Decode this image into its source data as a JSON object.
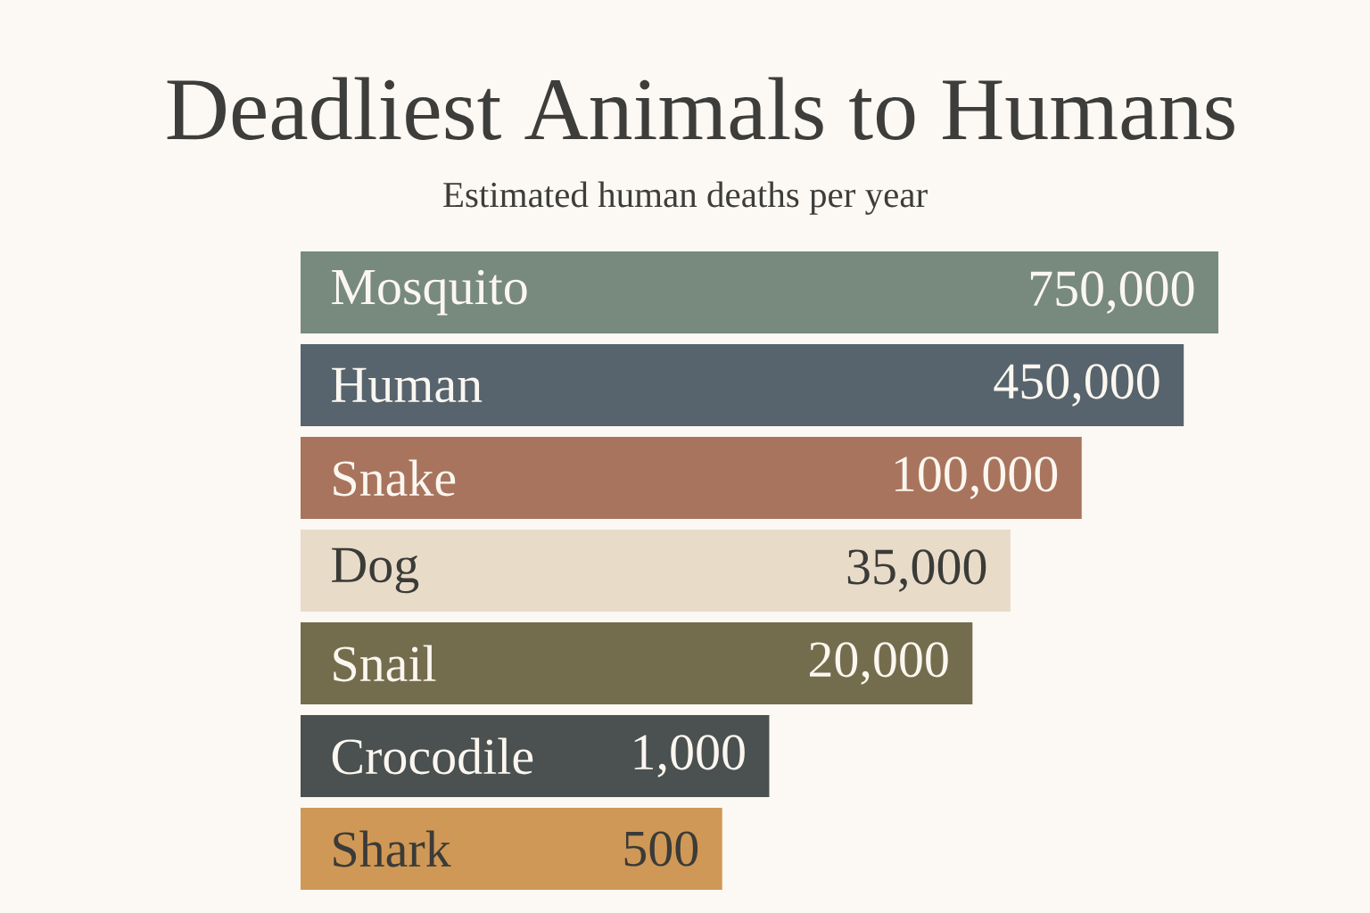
{
  "chart_data": {
    "type": "bar",
    "orientation": "horizontal",
    "title": "Deadliest Animals to Humans",
    "subtitle": "Estimated human deaths per year",
    "categories": [
      "Mosquito",
      "Human",
      "Snake",
      "Dog",
      "Snail",
      "Crocodile",
      "Shark"
    ],
    "values": [
      750000,
      450000,
      100000,
      35000,
      20000,
      1000,
      500
    ],
    "value_labels": [
      "750,000",
      "450,000",
      "100,000",
      "35,000",
      "20,000",
      "1,000",
      "500"
    ],
    "colors": [
      "#788a7e",
      "#57646d",
      "#a9745d",
      "#e8dbc8",
      "#746d4d",
      "#4b5050",
      "#d09856"
    ],
    "log": "x",
    "xlim": [
      1,
      750000
    ],
    "tick_labels": "y"
  }
}
